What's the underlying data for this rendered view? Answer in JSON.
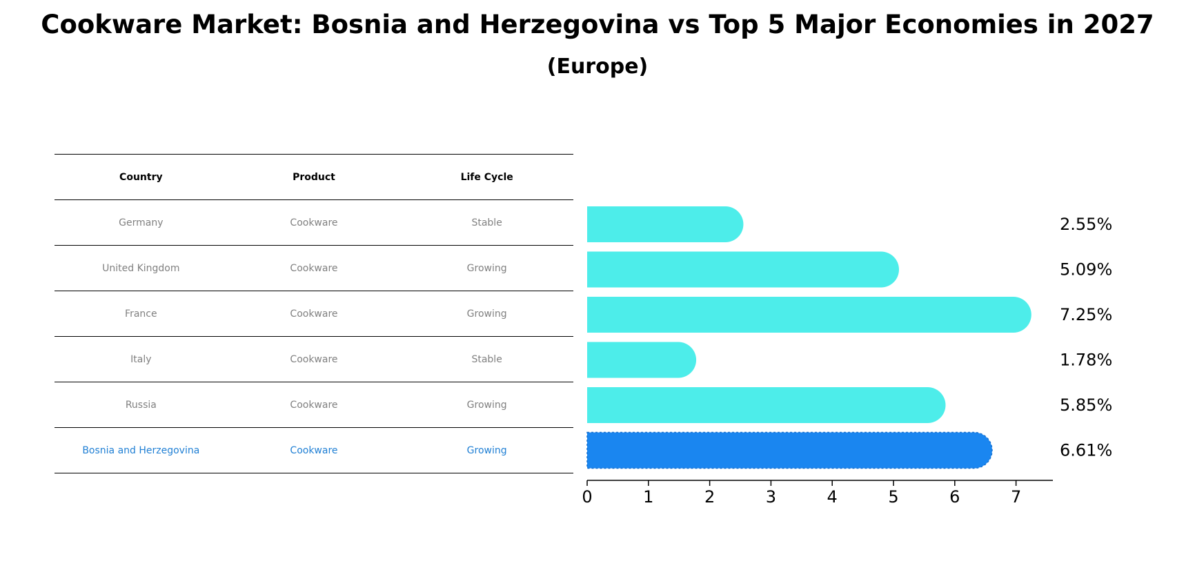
{
  "title": "Cookware Market: Bosnia and Herzegovina vs Top 5 Major Economies in 2027",
  "subtitle": "(Europe)",
  "table": {
    "headers": [
      "Country",
      "Product",
      "Life Cycle"
    ],
    "rows": [
      {
        "country": "Germany",
        "product": "Cookware",
        "life_cycle": "Stable"
      },
      {
        "country": "United Kingdom",
        "product": "Cookware",
        "life_cycle": "Growing"
      },
      {
        "country": "France",
        "product": "Cookware",
        "life_cycle": "Growing"
      },
      {
        "country": "Italy",
        "product": "Cookware",
        "life_cycle": "Stable"
      },
      {
        "country": "Russia",
        "product": "Cookware",
        "life_cycle": "Growing"
      },
      {
        "country": "Bosnia and Herzegovina",
        "product": "Cookware",
        "life_cycle": "Growing"
      }
    ]
  },
  "chart_data": {
    "type": "bar",
    "orientation": "horizontal",
    "title": "Cookware Market: Bosnia and Herzegovina vs Top 5 Major Economies in 2027",
    "subtitle": "(Europe)",
    "categories": [
      "Germany",
      "United Kingdom",
      "France",
      "Italy",
      "Russia",
      "Bosnia and Herzegovina"
    ],
    "values": [
      2.55,
      5.09,
      7.25,
      1.78,
      5.85,
      6.61
    ],
    "value_labels": [
      "2.55%",
      "5.09%",
      "7.25%",
      "1.78%",
      "5.85%",
      "6.61%"
    ],
    "highlight_index": 5,
    "xlim": [
      0,
      7.6
    ],
    "xticks": [
      0,
      1,
      2,
      3,
      4,
      5,
      6,
      7
    ],
    "xlabel": "",
    "ylabel": "",
    "colors": {
      "default": "#4dedea",
      "highlight": "#1a86f0"
    }
  }
}
